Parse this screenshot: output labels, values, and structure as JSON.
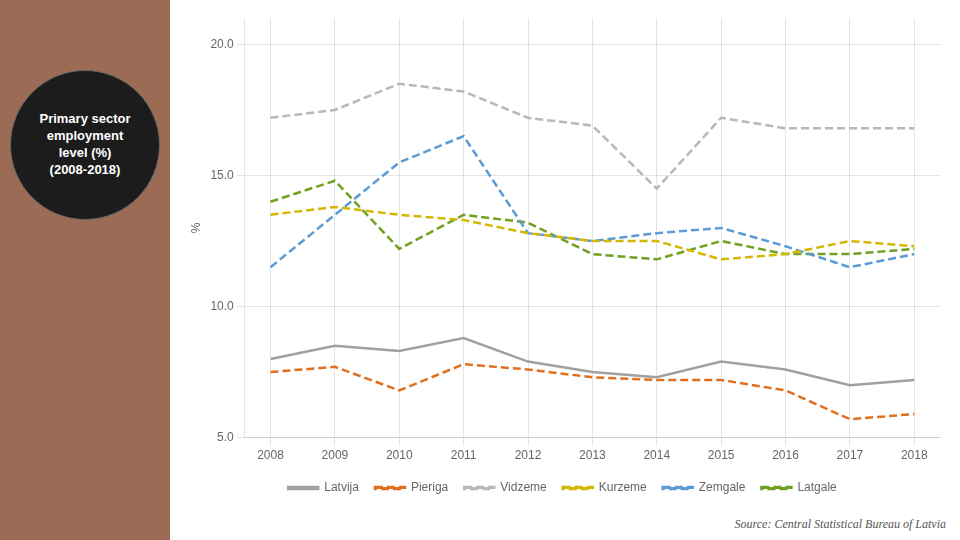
{
  "chart_data": {
    "type": "line",
    "title": "Primary sector\nemployment\nlevel (%)\n(2008-2018)",
    "ylabel": "%",
    "annotations": [
      "Source: Central Statistical Bureau of Latvia"
    ],
    "x": [
      2008,
      2009,
      2010,
      2011,
      2012,
      2013,
      2014,
      2015,
      2016,
      2017,
      2018
    ],
    "xlim": [
      2007.6,
      2018.4
    ],
    "xticks": [
      2008,
      2009,
      2010,
      2011,
      2012,
      2013,
      2014,
      2015,
      2016,
      2017,
      2018
    ],
    "ylim": [
      5.0,
      21.0
    ],
    "yticks": [
      {
        "value": 5.0,
        "label": "5.0"
      },
      {
        "value": 10.0,
        "label": "10.0"
      },
      {
        "value": 15.0,
        "label": "15.0"
      },
      {
        "value": 20.0,
        "label": "20.0"
      }
    ],
    "grid": true,
    "legend": "bottom",
    "series": [
      {
        "name": "Latvija",
        "color": "#a0a0a0",
        "line_style": "solid",
        "values": [
          8.0,
          8.5,
          8.3,
          8.8,
          7.9,
          7.5,
          7.3,
          7.9,
          7.6,
          7.0,
          7.2
        ]
      },
      {
        "name": "Pieriga",
        "color": "#e07020",
        "line_style": "dashed",
        "values": [
          7.5,
          7.7,
          6.8,
          7.8,
          7.6,
          7.3,
          7.2,
          7.2,
          6.8,
          5.7,
          5.9
        ]
      },
      {
        "name": "Vidzeme",
        "color": "#b8b8b8",
        "line_style": "dashed",
        "values": [
          17.2,
          17.5,
          18.5,
          18.2,
          17.2,
          16.9,
          14.5,
          17.2,
          16.8,
          16.8,
          16.8
        ]
      },
      {
        "name": "Kurzeme",
        "color": "#d4b800",
        "line_style": "dashed",
        "values": [
          13.5,
          13.8,
          13.5,
          13.3,
          12.8,
          12.5,
          12.5,
          11.8,
          12.0,
          12.5,
          12.3
        ]
      },
      {
        "name": "Zemgale",
        "color": "#5b9bd5",
        "line_style": "dashed",
        "values": [
          11.5,
          13.5,
          15.5,
          16.5,
          12.8,
          12.5,
          12.8,
          13.0,
          12.3,
          11.5,
          12.0
        ]
      },
      {
        "name": "Latgale",
        "color": "#70a020",
        "line_style": "dashed",
        "values": [
          14.0,
          14.8,
          12.2,
          13.5,
          13.2,
          12.0,
          11.8,
          12.5,
          12.0,
          12.0,
          12.2
        ]
      }
    ]
  }
}
